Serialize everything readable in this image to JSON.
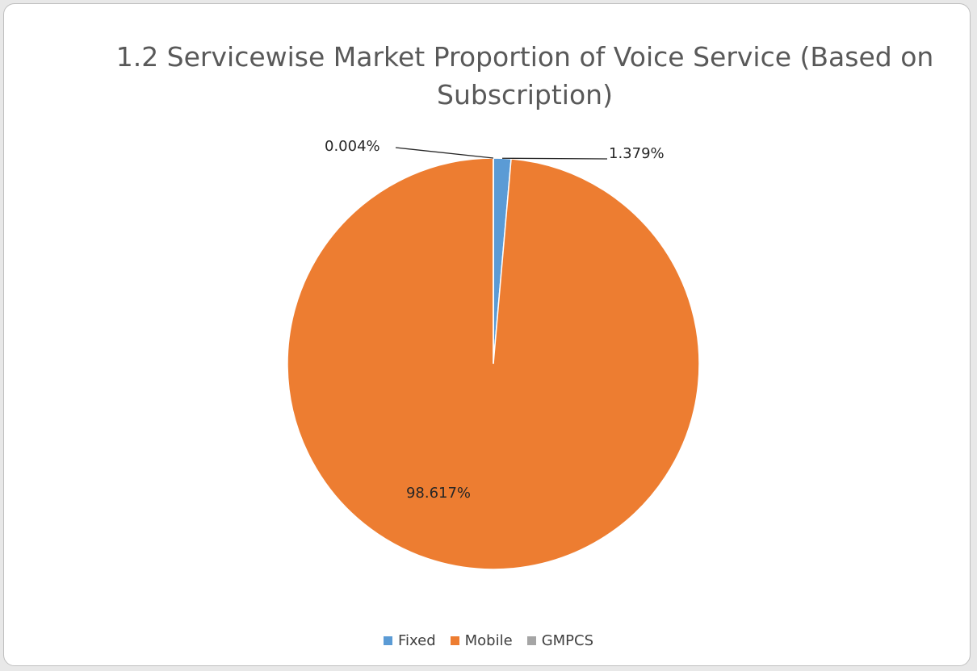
{
  "chart_data": {
    "type": "pie",
    "title_lines": [
      "1.2 Servicewise Market Proportion of Voice Service (Based on",
      "Subscription)"
    ],
    "categories": [
      "Fixed",
      "Mobile",
      "GMPCS"
    ],
    "values": [
      1.379,
      98.617,
      0.004
    ],
    "data_labels": [
      "1.379%",
      "98.617%",
      "0.004%"
    ],
    "colors": [
      "#5b9bd5",
      "#ed7d31",
      "#a5a5a5"
    ],
    "legend_position": "bottom"
  }
}
